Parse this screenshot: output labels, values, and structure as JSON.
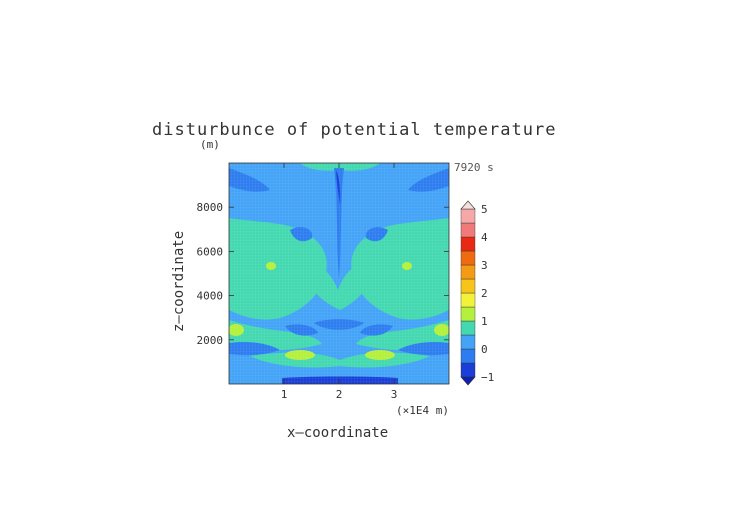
{
  "chart_data": {
    "type": "heatmap",
    "title": "disturbunce of potential temperature",
    "xlabel": "x—coordinate",
    "ylabel": "z—coordinate",
    "y_unit": "(m)",
    "x_unit": "(×1E4 m)",
    "time_label": "7920 s",
    "xlim": [
      0,
      4
    ],
    "ylim": [
      0,
      10000
    ],
    "xticks": [
      1,
      2,
      3
    ],
    "yticks": [
      2000,
      4000,
      6000,
      8000
    ],
    "colorbar": {
      "ticks": [
        "5",
        "4",
        "3",
        "2",
        "1",
        "0",
        "−1"
      ],
      "min": -1,
      "max": 5,
      "levels": [
        -1,
        -0.5,
        0,
        0.5,
        1,
        1.5,
        2,
        2.5,
        3,
        3.5,
        4,
        4.5,
        5
      ],
      "colors": [
        "#1a3fd9",
        "#2d7df0",
        "#43a3f7",
        "#43d8b0",
        "#b4f03c",
        "#f2f23a",
        "#f7c41a",
        "#f59a14",
        "#f06a10",
        "#e82a14",
        "#f07a7a",
        "#f4a8a8"
      ]
    },
    "regions": [
      {
        "level": "0 to 0.5",
        "description": "background field"
      },
      {
        "level": "-0.5 to 0",
        "description": "darker blue bands near 2500 m and 1400 m, central column"
      },
      {
        "level": "0.5 to 1",
        "description": "green lobes between 2000 and 7000 m on both sides"
      },
      {
        "level": "1 to 1.5",
        "description": "yellow-green blobs near z=1300 m and 2500 m, 5500 m"
      },
      {
        "level": "-1 to -0.5",
        "description": "strip at the bottom center and top center"
      }
    ]
  }
}
